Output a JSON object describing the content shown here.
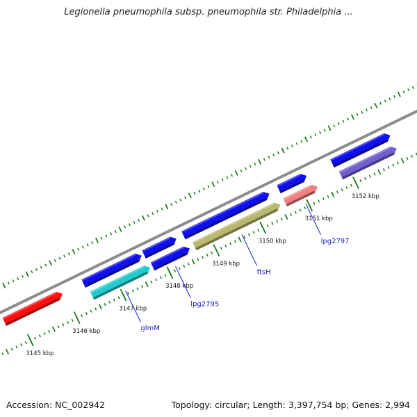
{
  "title": "Legionella pneumophila subsp. pneumophila str. Philadelphia ...",
  "footer": {
    "accession": "Accession: NC_002942",
    "stats": "Topology: circular; Length: 3,397,754 bp; Genes: 2,994"
  },
  "colors": {
    "backbone": "#8c8c8c",
    "ticks": "#1f7a1f",
    "label": "#1a1acc"
  },
  "ticks": [
    {
      "kbp": 3145,
      "label": "3145 kbp"
    },
    {
      "kbp": 3146,
      "label": "3146 kbp"
    },
    {
      "kbp": 3147,
      "label": "3147 kbp"
    },
    {
      "kbp": 3148,
      "label": "3148 kbp"
    },
    {
      "kbp": 3149,
      "label": "3149 kbp"
    },
    {
      "kbp": 3150,
      "label": "3150 kbp"
    },
    {
      "kbp": 3151,
      "label": "3151 kbp"
    },
    {
      "kbp": 3152,
      "label": "3152 kbp"
    }
  ],
  "genes": [
    {
      "track": "outer",
      "start": 3144.7,
      "end": 3145.95,
      "color": "#ff1010"
    },
    {
      "track": "outer",
      "start": 3146.4,
      "end": 3147.65,
      "color": "#1010ee"
    },
    {
      "track": "outer",
      "start": 3147.7,
      "end": 3148.4,
      "color": "#1010ee"
    },
    {
      "track": "outer",
      "start": 3148.55,
      "end": 3150.4,
      "color": "#1010ee"
    },
    {
      "track": "outer",
      "start": 3150.6,
      "end": 3151.2,
      "color": "#1010ee"
    },
    {
      "track": "outer",
      "start": 3151.75,
      "end": 3153.0,
      "color": "#1010ee"
    },
    {
      "track": "inner",
      "start": 3146.45,
      "end": 3147.7,
      "color": "#22cccc",
      "name": "glmM"
    },
    {
      "track": "inner",
      "start": 3147.75,
      "end": 3148.55,
      "color": "#1010ee",
      "name": "lpg2795"
    },
    {
      "track": "inner",
      "start": 3148.65,
      "end": 3150.5,
      "color": "#b8b870",
      "name": "ftsH"
    },
    {
      "track": "inner",
      "start": 3150.6,
      "end": 3151.3,
      "color": "#f08080",
      "name": "lpg2797"
    },
    {
      "track": "inner",
      "start": 3151.8,
      "end": 3153.0,
      "color": "#7060d0"
    }
  ]
}
